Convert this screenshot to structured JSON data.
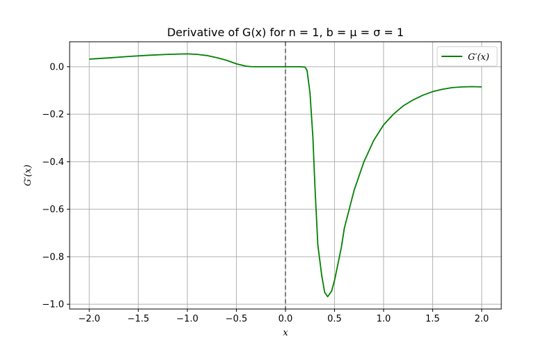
{
  "chart_data": {
    "type": "line",
    "title": "Derivative of G(x) for n = 1, b = μ = σ = 1",
    "xlabel": "x",
    "ylabel": "G′(x)",
    "xlim": [
      -2.2,
      2.2
    ],
    "ylim": [
      -1.02,
      0.105
    ],
    "xticks": [
      -2.0,
      -1.5,
      -1.0,
      -0.5,
      0.0,
      0.5,
      1.0,
      1.5,
      2.0
    ],
    "xtick_labels": [
      "−2.0",
      "−1.5",
      "−1.0",
      "−0.5",
      "0.0",
      "0.5",
      "1.0",
      "1.5",
      "2.0"
    ],
    "yticks": [
      0.0,
      -0.2,
      -0.4,
      -0.6,
      -0.8,
      -1.0
    ],
    "ytick_labels": [
      "0.0",
      "−0.2",
      "−0.4",
      "−0.6",
      "−0.8",
      "−1.0"
    ],
    "grid": true,
    "legend_position": "top-right",
    "reference_line": {
      "x": 0,
      "style": "dashed",
      "color": "#555555"
    },
    "series": [
      {
        "name": "G′(x)",
        "color": "#008000",
        "x": [
          -2.0,
          -1.8,
          -1.6,
          -1.4,
          -1.2,
          -1.0,
          -0.9,
          -0.8,
          -0.7,
          -0.6,
          -0.5,
          -0.4,
          -0.35,
          -0.3,
          -0.2,
          0.0,
          0.15,
          0.2,
          0.22,
          0.25,
          0.28,
          0.3,
          0.33,
          0.37,
          0.4,
          0.43,
          0.47,
          0.5,
          0.53,
          0.57,
          0.6,
          0.7,
          0.8,
          0.9,
          1.0,
          1.1,
          1.2,
          1.3,
          1.4,
          1.5,
          1.6,
          1.7,
          1.8,
          1.9,
          2.0
        ],
        "y": [
          0.032,
          0.037,
          0.043,
          0.048,
          0.052,
          0.054,
          0.052,
          0.047,
          0.038,
          0.027,
          0.012,
          0.002,
          0.0003,
          0.0,
          0.0,
          0.0,
          0.0,
          -0.002,
          -0.015,
          -0.11,
          -0.3,
          -0.5,
          -0.75,
          -0.88,
          -0.95,
          -0.968,
          -0.945,
          -0.9,
          -0.84,
          -0.76,
          -0.68,
          -0.52,
          -0.4,
          -0.31,
          -0.245,
          -0.2,
          -0.165,
          -0.14,
          -0.12,
          -0.105,
          -0.095,
          -0.088,
          -0.085,
          -0.084,
          -0.085
        ]
      }
    ]
  }
}
